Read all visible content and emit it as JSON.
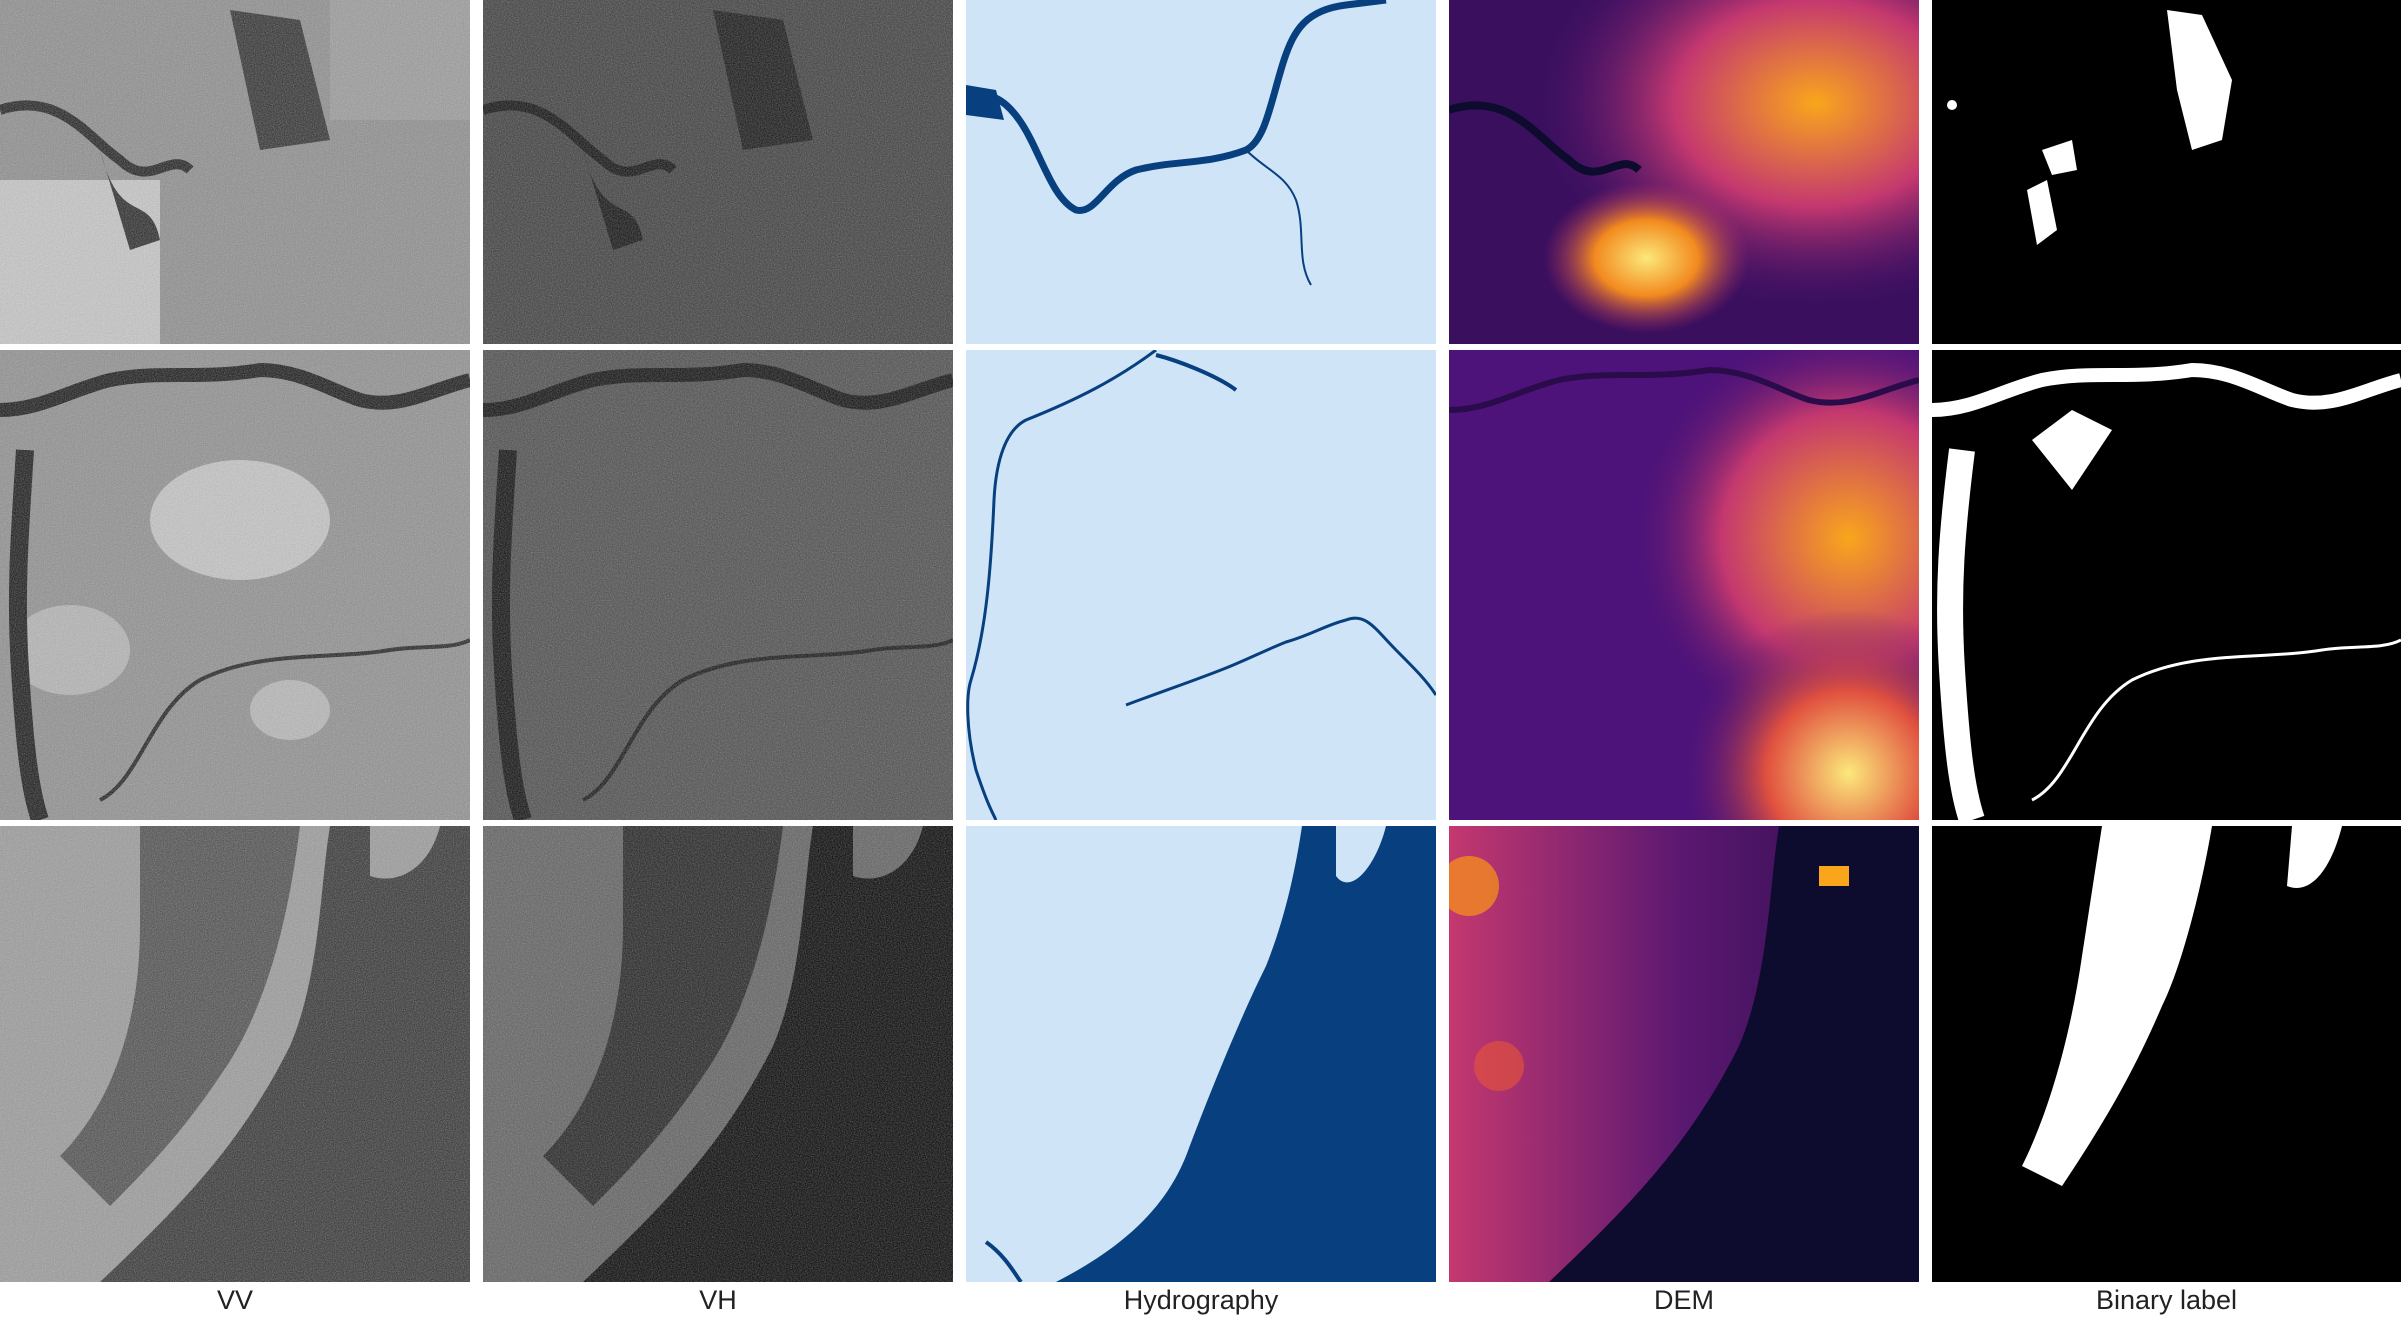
{
  "figure": {
    "columns": [
      {
        "key": "vv",
        "label": "VV"
      },
      {
        "key": "vh",
        "label": "VH"
      },
      {
        "key": "hydro",
        "label": "Hydrography"
      },
      {
        "key": "dem",
        "label": "DEM"
      },
      {
        "key": "label",
        "label": "Binary label"
      }
    ],
    "rows": [
      {
        "key": "urban-river",
        "scene": "urban area crossed by a winding river with reservoir"
      },
      {
        "key": "floodplain",
        "scene": "floodplain with meandering rivers"
      },
      {
        "key": "coastal",
        "scene": "coastal aquaculture ponds along a large water body"
      }
    ]
  },
  "colors": {
    "background": "#ffffff",
    "hydro_land": "#cfe5f7",
    "hydro_water": "#08407f",
    "dem_low": "#0d0b2e",
    "dem_mid": "#7a1c8c",
    "dem_high": "#f9a61c",
    "dem_peak": "#fce87a",
    "label_water": "#ffffff",
    "label_background": "#000000"
  }
}
